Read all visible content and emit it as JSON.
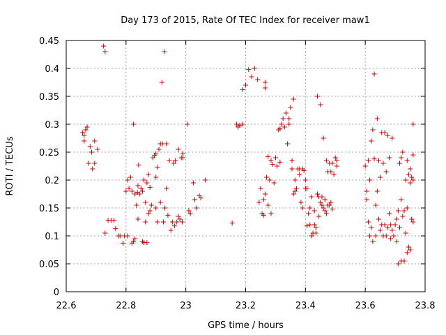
{
  "chart_data": {
    "type": "scatter",
    "title": "Day 173 of 2015, Rate Of TEC Index for receiver maw1",
    "xlabel": "GPS time / hours",
    "ylabel": "ROTI / TECUs",
    "xlim": [
      22.6,
      23.8
    ],
    "ylim": [
      0,
      0.45
    ],
    "x_ticks": [
      "22.6",
      "22.8",
      "23",
      "23.2",
      "23.4",
      "23.6",
      "23.8"
    ],
    "y_ticks": [
      "0",
      "0.05",
      "0.1",
      "0.15",
      "0.2",
      "0.25",
      "0.3",
      "0.35",
      "0.4",
      "0.45"
    ],
    "grid": true,
    "marker": "plus",
    "colors": {
      "series": "#cc0000",
      "grid": "#a0a0a0"
    },
    "series": [
      {
        "name": "maw1",
        "points": [
          [
            22.655,
            0.285
          ],
          [
            22.66,
            0.27
          ],
          [
            22.665,
            0.29
          ],
          [
            22.67,
            0.295
          ],
          [
            22.66,
            0.28
          ],
          [
            22.675,
            0.23
          ],
          [
            22.68,
            0.26
          ],
          [
            22.685,
            0.25
          ],
          [
            22.688,
            0.22
          ],
          [
            22.695,
            0.23
          ],
          [
            22.695,
            0.27
          ],
          [
            22.705,
            0.255
          ],
          [
            22.725,
            0.44
          ],
          [
            22.73,
            0.43
          ],
          [
            22.73,
            0.105
          ],
          [
            22.74,
            0.128
          ],
          [
            22.75,
            0.128
          ],
          [
            22.76,
            0.128
          ],
          [
            22.765,
            0.113
          ],
          [
            22.775,
            0.1
          ],
          [
            22.78,
            0.1
          ],
          [
            22.79,
            0.087
          ],
          [
            22.795,
            0.1
          ],
          [
            22.805,
            0.1
          ],
          [
            22.8,
            0.18
          ],
          [
            22.805,
            0.2
          ],
          [
            22.81,
            0.185
          ],
          [
            22.815,
            0.205
          ],
          [
            22.82,
            0.18
          ],
          [
            22.82,
            0.087
          ],
          [
            22.825,
            0.09
          ],
          [
            22.83,
            0.095
          ],
          [
            22.83,
            0.175
          ],
          [
            22.825,
            0.3
          ],
          [
            22.835,
            0.155
          ],
          [
            22.838,
            0.178
          ],
          [
            22.84,
            0.13
          ],
          [
            22.84,
            0.19
          ],
          [
            22.842,
            0.227
          ],
          [
            22.845,
            0.175
          ],
          [
            22.85,
            0.185
          ],
          [
            22.855,
            0.18
          ],
          [
            22.855,
            0.09
          ],
          [
            22.86,
            0.2
          ],
          [
            22.86,
            0.088
          ],
          [
            22.865,
            0.125
          ],
          [
            22.865,
            0.16
          ],
          [
            22.87,
            0.088
          ],
          [
            22.87,
            0.195
          ],
          [
            22.875,
            0.14
          ],
          [
            22.875,
            0.21
          ],
          [
            22.88,
            0.145
          ],
          [
            22.88,
            0.187
          ],
          [
            22.885,
            0.155
          ],
          [
            22.89,
            0.24
          ],
          [
            22.895,
            0.244
          ],
          [
            22.9,
            0.15
          ],
          [
            22.9,
            0.205
          ],
          [
            22.9,
            0.247
          ],
          [
            22.905,
            0.223
          ],
          [
            22.905,
            0.125
          ],
          [
            22.91,
            0.255
          ],
          [
            22.915,
            0.16
          ],
          [
            22.915,
            0.265
          ],
          [
            22.92,
            0.375
          ],
          [
            22.922,
            0.265
          ],
          [
            22.925,
            0.125
          ],
          [
            22.928,
            0.43
          ],
          [
            22.93,
            0.15
          ],
          [
            22.935,
            0.265
          ],
          [
            22.935,
            0.185
          ],
          [
            22.94,
            0.137
          ],
          [
            22.945,
            0.235
          ],
          [
            22.95,
            0.11
          ],
          [
            22.955,
            0.125
          ],
          [
            22.96,
            0.23
          ],
          [
            22.962,
            0.118
          ],
          [
            22.965,
            0.235
          ],
          [
            22.97,
            0.125
          ],
          [
            22.975,
            0.135
          ],
          [
            22.975,
            0.255
          ],
          [
            22.98,
            0.13
          ],
          [
            22.985,
            0.24
          ],
          [
            22.988,
            0.125
          ],
          [
            22.99,
            0.24
          ],
          [
            22.99,
            0.247
          ],
          [
            23.005,
            0.3
          ],
          [
            23.01,
            0.145
          ],
          [
            23.015,
            0.14
          ],
          [
            23.025,
            0.195
          ],
          [
            23.03,
            0.165
          ],
          [
            23.035,
            0.15
          ],
          [
            23.045,
            0.172
          ],
          [
            23.05,
            0.168
          ],
          [
            23.065,
            0.2
          ],
          [
            23.155,
            0.123
          ],
          [
            23.17,
            0.3
          ],
          [
            23.175,
            0.295
          ],
          [
            23.18,
            0.298
          ],
          [
            23.19,
            0.362
          ],
          [
            23.19,
            0.3
          ],
          [
            23.2,
            0.37
          ],
          [
            23.21,
            0.398
          ],
          [
            23.22,
            0.385
          ],
          [
            23.23,
            0.4
          ],
          [
            23.24,
            0.38
          ],
          [
            23.245,
            0.16
          ],
          [
            23.25,
            0.185
          ],
          [
            23.255,
            0.14
          ],
          [
            23.26,
            0.165
          ],
          [
            23.26,
            0.137
          ],
          [
            23.265,
            0.175
          ],
          [
            23.265,
            0.365
          ],
          [
            23.265,
            0.375
          ],
          [
            23.27,
            0.205
          ],
          [
            23.275,
            0.242
          ],
          [
            23.275,
            0.155
          ],
          [
            23.28,
            0.2
          ],
          [
            23.285,
            0.235
          ],
          [
            23.285,
            0.14
          ],
          [
            23.29,
            0.228
          ],
          [
            23.295,
            0.195
          ],
          [
            23.3,
            0.24
          ],
          [
            23.305,
            0.225
          ],
          [
            23.31,
            0.29
          ],
          [
            23.315,
            0.232
          ],
          [
            23.315,
            0.292
          ],
          [
            23.32,
            0.3
          ],
          [
            23.325,
            0.31
          ],
          [
            23.33,
            0.295
          ],
          [
            23.335,
            0.32
          ],
          [
            23.34,
            0.265
          ],
          [
            23.345,
            0.31
          ],
          [
            23.345,
            0.3
          ],
          [
            23.35,
            0.33
          ],
          [
            23.355,
            0.22
          ],
          [
            23.355,
            0.235
          ],
          [
            23.36,
            0.175
          ],
          [
            23.36,
            0.345
          ],
          [
            23.365,
            0.2
          ],
          [
            23.365,
            0.18
          ],
          [
            23.37,
            0.185
          ],
          [
            23.375,
            0.22
          ],
          [
            23.38,
            0.22
          ],
          [
            23.38,
            0.21
          ],
          [
            23.385,
            0.16
          ],
          [
            23.39,
            0.22
          ],
          [
            23.39,
            0.15
          ],
          [
            23.395,
            0.217
          ],
          [
            23.4,
            0.185
          ],
          [
            23.4,
            0.2
          ],
          [
            23.405,
            0.185
          ],
          [
            23.405,
            0.118
          ],
          [
            23.41,
            0.14
          ],
          [
            23.415,
            0.12
          ],
          [
            23.415,
            0.15
          ],
          [
            23.42,
            0.1
          ],
          [
            23.42,
            0.17
          ],
          [
            23.425,
            0.105
          ],
          [
            23.43,
            0.145
          ],
          [
            23.43,
            0.12
          ],
          [
            23.435,
            0.115
          ],
          [
            23.435,
            0.105
          ],
          [
            23.44,
            0.175
          ],
          [
            23.44,
            0.35
          ],
          [
            23.445,
            0.17
          ],
          [
            23.445,
            0.135
          ],
          [
            23.45,
            0.16
          ],
          [
            23.45,
            0.335
          ],
          [
            23.455,
            0.155
          ],
          [
            23.455,
            0.17
          ],
          [
            23.46,
            0.275
          ],
          [
            23.46,
            0.15
          ],
          [
            23.465,
            0.145
          ],
          [
            23.465,
            0.165
          ],
          [
            23.47,
            0.235
          ],
          [
            23.47,
            0.14
          ],
          [
            23.475,
            0.215
          ],
          [
            23.475,
            0.155
          ],
          [
            23.48,
            0.23
          ],
          [
            23.48,
            0.155
          ],
          [
            23.485,
            0.215
          ],
          [
            23.485,
            0.16
          ],
          [
            23.49,
            0.23
          ],
          [
            23.49,
            0.148
          ],
          [
            23.495,
            0.21
          ],
          [
            23.5,
            0.24
          ],
          [
            23.505,
            0.225
          ],
          [
            23.505,
            0.235
          ],
          [
            23.6,
            0.225
          ],
          [
            23.605,
            0.165
          ],
          [
            23.605,
            0.18
          ],
          [
            23.61,
            0.125
          ],
          [
            23.61,
            0.235
          ],
          [
            23.615,
            0.2
          ],
          [
            23.615,
            0.1
          ],
          [
            23.62,
            0.27
          ],
          [
            23.62,
            0.115
          ],
          [
            23.625,
            0.09
          ],
          [
            23.625,
            0.29
          ],
          [
            23.63,
            0.39
          ],
          [
            23.63,
            0.238
          ],
          [
            23.635,
            0.155
          ],
          [
            23.635,
            0.1
          ],
          [
            23.64,
            0.31
          ],
          [
            23.64,
            0.18
          ],
          [
            23.645,
            0.235
          ],
          [
            23.645,
            0.13
          ],
          [
            23.65,
            0.205
          ],
          [
            23.65,
            0.11
          ],
          [
            23.655,
            0.285
          ],
          [
            23.655,
            0.12
          ],
          [
            23.66,
            0.23
          ],
          [
            23.66,
            0.1
          ],
          [
            23.665,
            0.285
          ],
          [
            23.665,
            0.12
          ],
          [
            23.67,
            0.215
          ],
          [
            23.67,
            0.1
          ],
          [
            23.675,
            0.28
          ],
          [
            23.675,
            0.115
          ],
          [
            23.68,
            0.24
          ],
          [
            23.68,
            0.14
          ],
          [
            23.685,
            0.12
          ],
          [
            23.685,
            0.095
          ],
          [
            23.69,
            0.11
          ],
          [
            23.69,
            0.275
          ],
          [
            23.695,
            0.1
          ],
          [
            23.7,
            0.12
          ],
          [
            23.705,
            0.13
          ],
          [
            23.705,
            0.09
          ],
          [
            23.71,
            0.145
          ],
          [
            23.71,
            0.05
          ],
          [
            23.715,
            0.115
          ],
          [
            23.715,
            0.23
          ],
          [
            23.72,
            0.24
          ],
          [
            23.72,
            0.055
          ],
          [
            23.72,
            0.165
          ],
          [
            23.725,
            0.25
          ],
          [
            23.725,
            0.135
          ],
          [
            23.73,
            0.145
          ],
          [
            23.73,
            0.055
          ],
          [
            23.735,
            0.2
          ],
          [
            23.735,
            0.105
          ],
          [
            23.74,
            0.235
          ],
          [
            23.74,
            0.15
          ],
          [
            23.74,
            0.07
          ],
          [
            23.745,
            0.21
          ],
          [
            23.745,
            0.08
          ],
          [
            23.75,
            0.22
          ],
          [
            23.75,
            0.195
          ],
          [
            23.75,
            0.075
          ],
          [
            23.755,
            0.205
          ],
          [
            23.755,
            0.13
          ],
          [
            23.76,
            0.245
          ],
          [
            23.76,
            0.125
          ],
          [
            23.76,
            0.3
          ],
          [
            23.76,
            0.2
          ]
        ]
      }
    ]
  }
}
